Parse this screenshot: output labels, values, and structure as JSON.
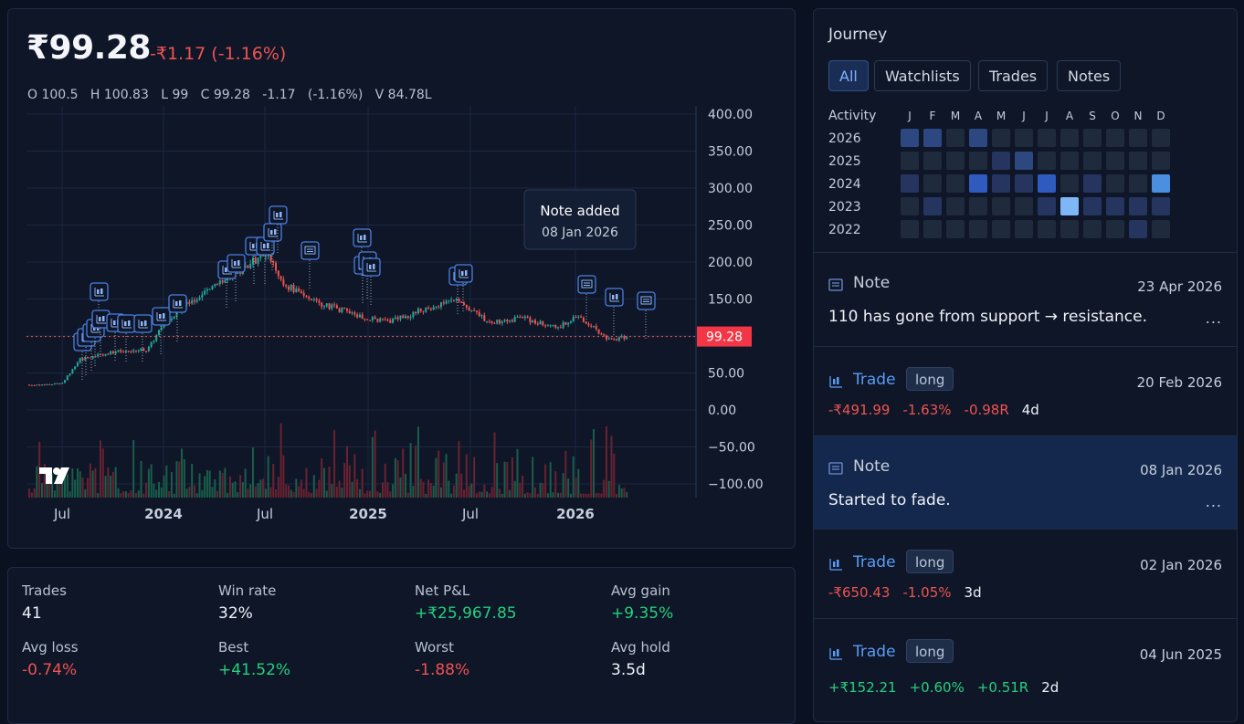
{
  "header": {
    "price": "₹99.28",
    "change": "-₹1.17 (-1.16%)",
    "ohlc": "O 100.5   H 100.83   L 99   C 99.28   -1.17   (-1.16%)   V 84.78L"
  },
  "chart": {
    "tooltip_title": "Note added",
    "tooltip_date": "08 Jan 2026",
    "last_price_label": "99.28",
    "colors": {
      "up": "#26a69a",
      "down": "#ef5350",
      "grid": "#1c2740",
      "volume_up": "#1b5e4a",
      "volume_down": "#6b2230",
      "marker": "#4a7fe0"
    }
  },
  "chart_data": {
    "type": "line",
    "y_ticks": [
      "400.00",
      "350.00",
      "300.00",
      "250.00",
      "200.00",
      "150.00",
      "100.00",
      "50.00",
      "0.00",
      "−50.00",
      "−100.00"
    ],
    "ylim": [
      -100,
      400
    ],
    "x_ticks": [
      "Jul",
      "2024",
      "Jul",
      "2025",
      "Jul",
      "2026"
    ],
    "x": [
      "2023-03",
      "2023-05",
      "2023-07",
      "2023-08",
      "2023-10",
      "2023-12",
      "2024-01",
      "2024-03",
      "2024-05",
      "2024-07",
      "2024-08",
      "2024-10",
      "2024-12",
      "2025-02",
      "2025-04",
      "2025-06",
      "2025-08",
      "2025-10",
      "2025-12",
      "2026-01",
      "2026-03",
      "2026-04"
    ],
    "series": [
      {
        "values": [
          34,
          33,
          36,
          68,
          78,
          82,
          120,
          155,
          180,
          215,
          170,
          145,
          130,
          118,
          135,
          150,
          118,
          124,
          110,
          128,
          95,
          99.28
        ]
      }
    ],
    "last": 99.28
  },
  "stats": [
    {
      "label": "Trades",
      "value": "41",
      "tone": "neu"
    },
    {
      "label": "Win rate",
      "value": "32%",
      "tone": "neu"
    },
    {
      "label": "Net P&L",
      "value": "+₹25,967.85",
      "tone": "pos"
    },
    {
      "label": "Avg gain",
      "value": "+9.35%",
      "tone": "pos"
    },
    {
      "label": "Avg loss",
      "value": "-0.74%",
      "tone": "neg"
    },
    {
      "label": "Best",
      "value": "+41.52%",
      "tone": "pos"
    },
    {
      "label": "Worst",
      "value": "-1.88%",
      "tone": "neg"
    },
    {
      "label": "Avg hold",
      "value": "3.5d",
      "tone": "neu"
    }
  ],
  "journey": {
    "title": "Journey",
    "tabs": [
      "All",
      "Watchlists",
      "Trades",
      "Notes"
    ],
    "activity_label": "Activity",
    "months": [
      "J",
      "F",
      "M",
      "A",
      "M",
      "J",
      "J",
      "A",
      "S",
      "O",
      "N",
      "D"
    ],
    "years": [
      "2026",
      "2025",
      "2024",
      "2023",
      "2022"
    ],
    "heat": [
      [
        2,
        2,
        0,
        2,
        0,
        0,
        0,
        0,
        0,
        0,
        0,
        0
      ],
      [
        0,
        0,
        0,
        0,
        1,
        2,
        0,
        0,
        0,
        0,
        0,
        0
      ],
      [
        1,
        0,
        0,
        3,
        1,
        1,
        3,
        0,
        1,
        0,
        0,
        4
      ],
      [
        0,
        1,
        0,
        0,
        0,
        0,
        1,
        5,
        1,
        1,
        1,
        1
      ],
      [
        0,
        0,
        0,
        0,
        0,
        0,
        0,
        0,
        0,
        0,
        1,
        0
      ]
    ],
    "heat_colors": [
      "#1f2a3d",
      "#253560",
      "#2d4780",
      "#2f5bbf",
      "#4a8fe0",
      "#7fb6f5"
    ],
    "entries": [
      {
        "kind": "Note",
        "date": "23 Apr 2026",
        "text": "110 has gone from support → resistance.",
        "more": "..."
      },
      {
        "kind": "Trade",
        "badge": "long",
        "date": "20 Feb 2026",
        "m1": "-₹491.99",
        "m2": "-1.63%",
        "m3": "-0.98R",
        "m4": "4d"
      },
      {
        "kind": "Note",
        "date": "08 Jan 2026",
        "text": "Started to fade.",
        "more": "..."
      },
      {
        "kind": "Trade",
        "badge": "long",
        "date": "02 Jan 2026",
        "m1": "-₹650.43",
        "m2": "-1.05%",
        "m4": "3d"
      },
      {
        "kind": "Trade",
        "badge": "long",
        "date": "04 Jun 2025",
        "m1": "+₹152.21",
        "m2": "+0.60%",
        "m3": "+0.51R",
        "m4": "2d"
      }
    ]
  }
}
